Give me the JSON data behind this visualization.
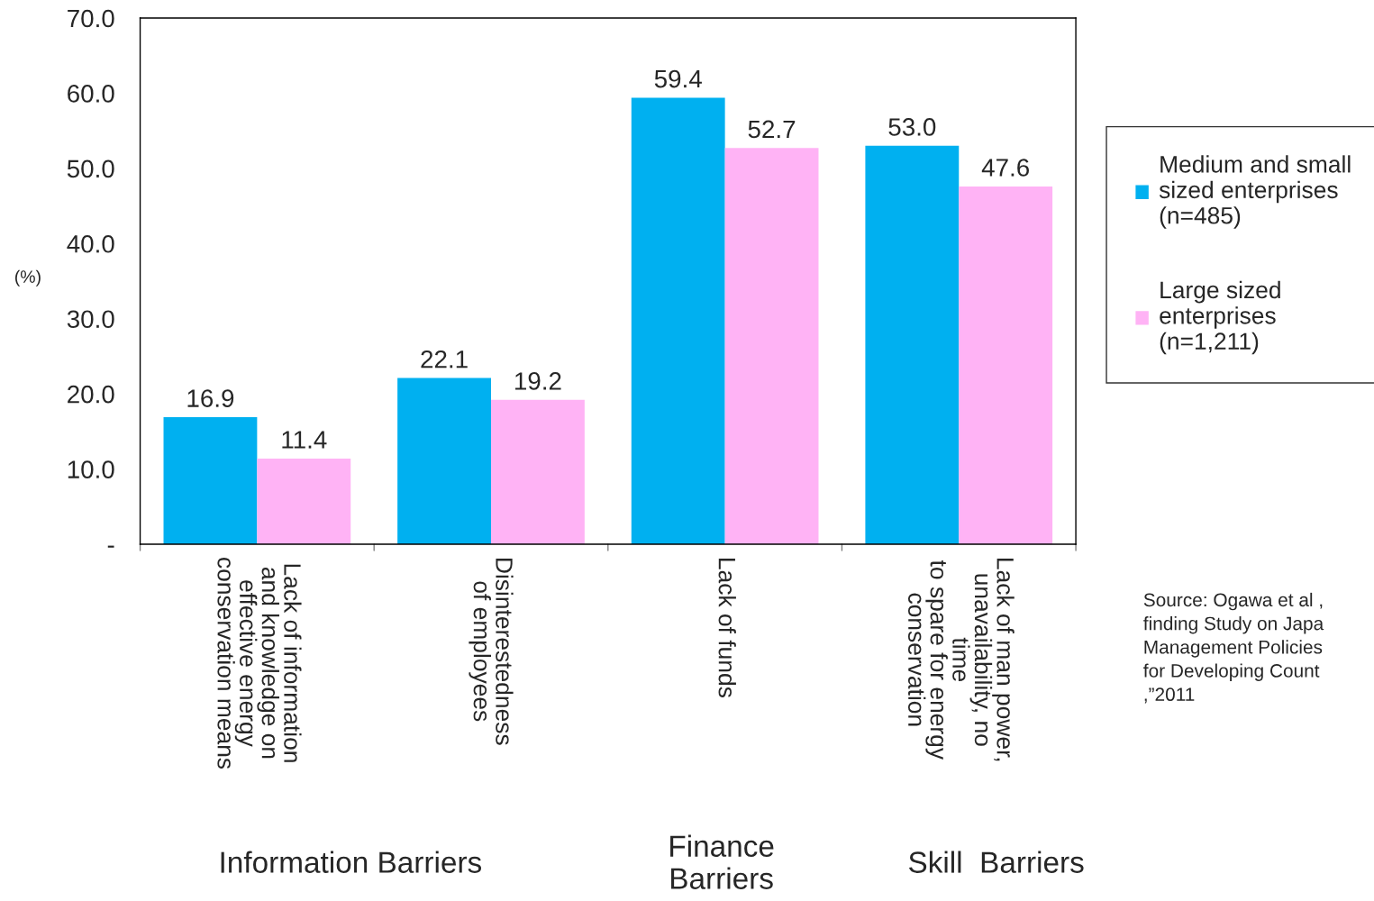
{
  "chart_data": {
    "type": "bar",
    "categories": [
      "Lack of information\nand knowledge on\neffective energy\nconservation means",
      "Disinterestedness\nof employees",
      "Lack of funds",
      "Lack of man power,\nunavailability, no\ntime\nto spare for energy\nconservation"
    ],
    "series": [
      {
        "name": "Medium and small\nsized enterprises\n(n=485)",
        "color": "#00b0f0",
        "values": [
          16.9,
          22.1,
          59.4,
          53.0
        ],
        "value_labels": [
          "16.9",
          "22.1",
          "59.4",
          "53.0"
        ]
      },
      {
        "name": "Large sized\nenterprises\n(n=1,211)",
        "color": "#ffb3f5",
        "values": [
          11.4,
          19.2,
          52.7,
          47.6
        ],
        "value_labels": [
          "11.4",
          "19.2",
          "52.7",
          "47.6"
        ]
      }
    ],
    "ylabel": "(%)",
    "ylim": [
      0,
      70
    ],
    "yticks": [
      {
        "value": 0,
        "label": "-"
      },
      {
        "value": 10,
        "label": "10.0"
      },
      {
        "value": 20,
        "label": "20.0"
      },
      {
        "value": 30,
        "label": "30.0"
      },
      {
        "value": 40,
        "label": "40.0"
      },
      {
        "value": 50,
        "label": "50.0"
      },
      {
        "value": 60,
        "label": "60.0"
      },
      {
        "value": 70,
        "label": "70.0"
      }
    ],
    "grid": false,
    "legend": "right",
    "annotations": [
      "Information Barriers",
      "Finance\nBarriers",
      "Skill  Barriers",
      "Source: Ogawa et al ,\nfinding Study on Japa\nManagement Policies\nfor Developing Count\n,”2011"
    ]
  }
}
